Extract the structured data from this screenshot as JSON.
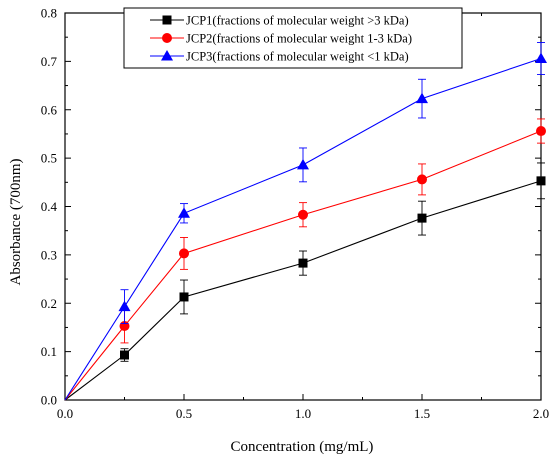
{
  "chart_data": {
    "type": "line",
    "xlabel": "Concentration (mg/mL)",
    "ylabel": "Absorbance (700nm)",
    "xlim": [
      0.0,
      2.0
    ],
    "ylim": [
      0.0,
      0.8
    ],
    "xticks": [
      "0.0",
      "0.5",
      "1.0",
      "1.5",
      "2.0"
    ],
    "yticks": [
      "0.0",
      "0.1",
      "0.2",
      "0.3",
      "0.4",
      "0.5",
      "0.6",
      "0.7",
      "0.8"
    ],
    "legend_position": "top-right",
    "grid": false,
    "x": [
      0.0,
      0.25,
      0.5,
      1.0,
      1.5,
      2.0
    ],
    "series": [
      {
        "name": "JCP1(fractions of molecular weight >3 kDa)",
        "color": "#000000",
        "marker": "square",
        "values": [
          0.0,
          0.093,
          0.213,
          0.283,
          0.376,
          0.453
        ],
        "errors": [
          0.0,
          0.013,
          0.035,
          0.025,
          0.035,
          0.037
        ]
      },
      {
        "name": "JCP2(fractions of molecular weight 1-3 kDa)",
        "color": "#ff0000",
        "marker": "circle",
        "values": [
          0.0,
          0.153,
          0.303,
          0.383,
          0.456,
          0.556
        ],
        "errors": [
          0.0,
          0.035,
          0.033,
          0.025,
          0.032,
          0.025
        ]
      },
      {
        "name": "JCP3(fractions of molecular weight <1 kDa)",
        "color": "#0000ff",
        "marker": "triangle",
        "values": [
          0.0,
          0.193,
          0.386,
          0.486,
          0.623,
          0.706
        ],
        "errors": [
          0.0,
          0.035,
          0.02,
          0.035,
          0.04,
          0.033
        ]
      }
    ]
  }
}
